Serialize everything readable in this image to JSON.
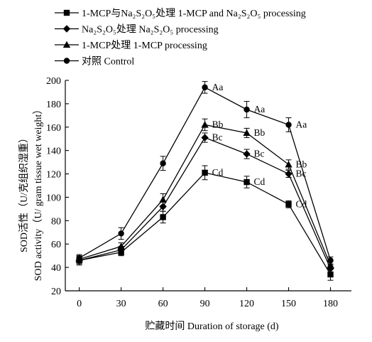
{
  "chart_data": {
    "type": "line",
    "xlabel": "贮藏时间 Duration of storage (d)",
    "ylabel": [
      "SOD活性（U/克组织湿重）",
      "SOD activity（U/ gram tissue wet weight）"
    ],
    "x": [
      0,
      30,
      60,
      90,
      120,
      150,
      180
    ],
    "xlim": [
      -10,
      195
    ],
    "ylim": [
      20,
      200
    ],
    "yticks": [
      20,
      40,
      60,
      80,
      100,
      120,
      140,
      160,
      180,
      200
    ],
    "legend_position": "top-left",
    "series": [
      {
        "name": "1-MCP与Na₂S₂O₅处理 1-MCP and Na₂S₂O₅ processing",
        "marker": "square",
        "values": [
          46,
          53,
          83,
          121,
          113,
          94,
          34
        ],
        "errors": [
          4,
          3,
          5,
          6,
          5,
          3,
          5
        ]
      },
      {
        "name": "Na₂S₂O₅处理 Na₂S₂O₅ processing",
        "marker": "diamond",
        "values": [
          46,
          55,
          92,
          151,
          137,
          120,
          39
        ],
        "errors": [
          3,
          3,
          4,
          4,
          4,
          3,
          3
        ]
      },
      {
        "name": "1-MCP处理 1-MCP processing",
        "marker": "triangle",
        "values": [
          47,
          58,
          98,
          162,
          155,
          128,
          42
        ],
        "errors": [
          3,
          3,
          5,
          5,
          4,
          4,
          3
        ]
      },
      {
        "name": "对照 Control",
        "marker": "circle",
        "values": [
          48,
          69,
          129,
          194,
          175,
          162,
          46
        ],
        "errors": [
          3,
          5,
          6,
          5,
          7,
          6,
          3
        ]
      }
    ],
    "annotations": [
      {
        "text": "Aa",
        "x": 90,
        "y": 194
      },
      {
        "text": "Bb",
        "x": 90,
        "y": 162
      },
      {
        "text": "Bc",
        "x": 90,
        "y": 151
      },
      {
        "text": "Cd",
        "x": 90,
        "y": 121
      },
      {
        "text": "Aa",
        "x": 120,
        "y": 175
      },
      {
        "text": "Bb",
        "x": 120,
        "y": 155
      },
      {
        "text": "Bc",
        "x": 120,
        "y": 137
      },
      {
        "text": "Cd",
        "x": 120,
        "y": 113
      },
      {
        "text": "Aa",
        "x": 150,
        "y": 162
      },
      {
        "text": "Bb",
        "x": 150,
        "y": 128
      },
      {
        "text": "Bc",
        "x": 150,
        "y": 120
      },
      {
        "text": "Cd",
        "x": 150,
        "y": 94
      }
    ]
  }
}
